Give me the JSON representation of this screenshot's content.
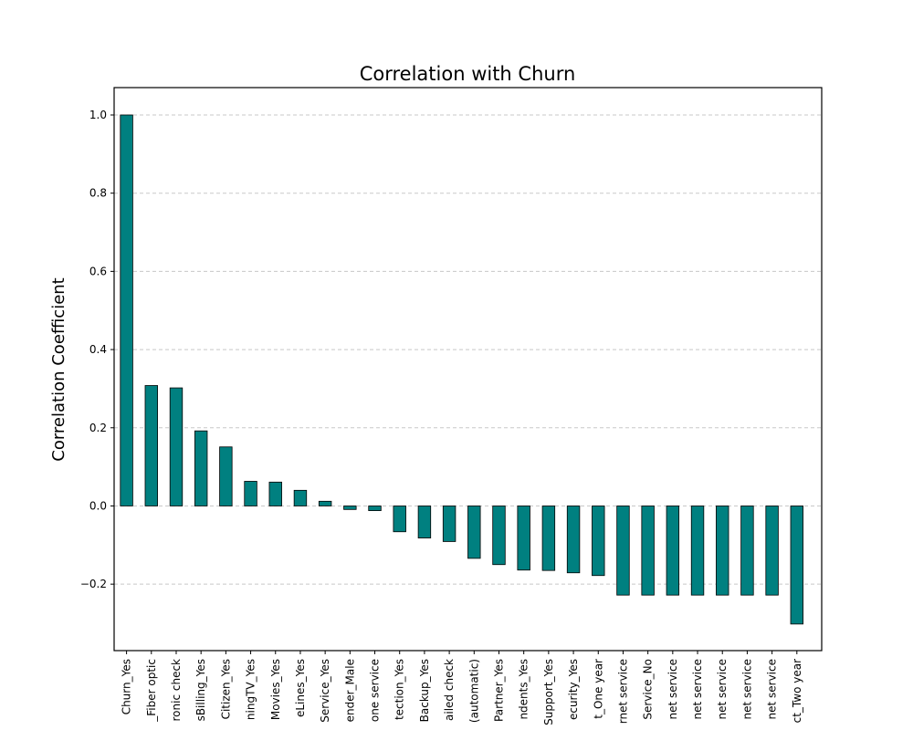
{
  "chart_data": {
    "type": "bar",
    "title": "Correlation with Churn",
    "xlabel": "",
    "ylabel": "Correlation Coefficient",
    "ylim": [
      -0.37,
      1.07
    ],
    "yticks": [
      -0.2,
      0.0,
      0.2,
      0.4,
      0.6,
      0.8,
      1.0
    ],
    "ytick_labels": [
      "−0.2",
      "0.0",
      "0.2",
      "0.4",
      "0.6",
      "0.8",
      "1.0"
    ],
    "grid": "y-axis, dashed",
    "bar_color": "#008080",
    "categories": [
      "Churn_Yes",
      "_Fiber optic",
      "ronic check",
      "sBilling_Yes",
      "Citizen_Yes",
      "ningTV_Yes",
      "Movies_Yes",
      "eLines_Yes",
      "Service_Yes",
      "ender_Male",
      "one service",
      "tection_Yes",
      "Backup_Yes",
      "ailed check",
      "(automatic)",
      "Partner_Yes",
      "ndents_Yes",
      "Support_Yes",
      "ecurity_Yes",
      "t_One year",
      "rnet service",
      "Service_No",
      "net service",
      "net service",
      "net service",
      "net service",
      "net service",
      "ct_Two year"
    ],
    "values": [
      1.0,
      0.308,
      0.302,
      0.192,
      0.151,
      0.063,
      0.061,
      0.04,
      0.012,
      -0.009,
      -0.012,
      -0.066,
      -0.082,
      -0.091,
      -0.134,
      -0.15,
      -0.164,
      -0.165,
      -0.171,
      -0.178,
      -0.228,
      -0.228,
      -0.228,
      -0.228,
      -0.228,
      -0.228,
      -0.228,
      -0.302
    ]
  }
}
